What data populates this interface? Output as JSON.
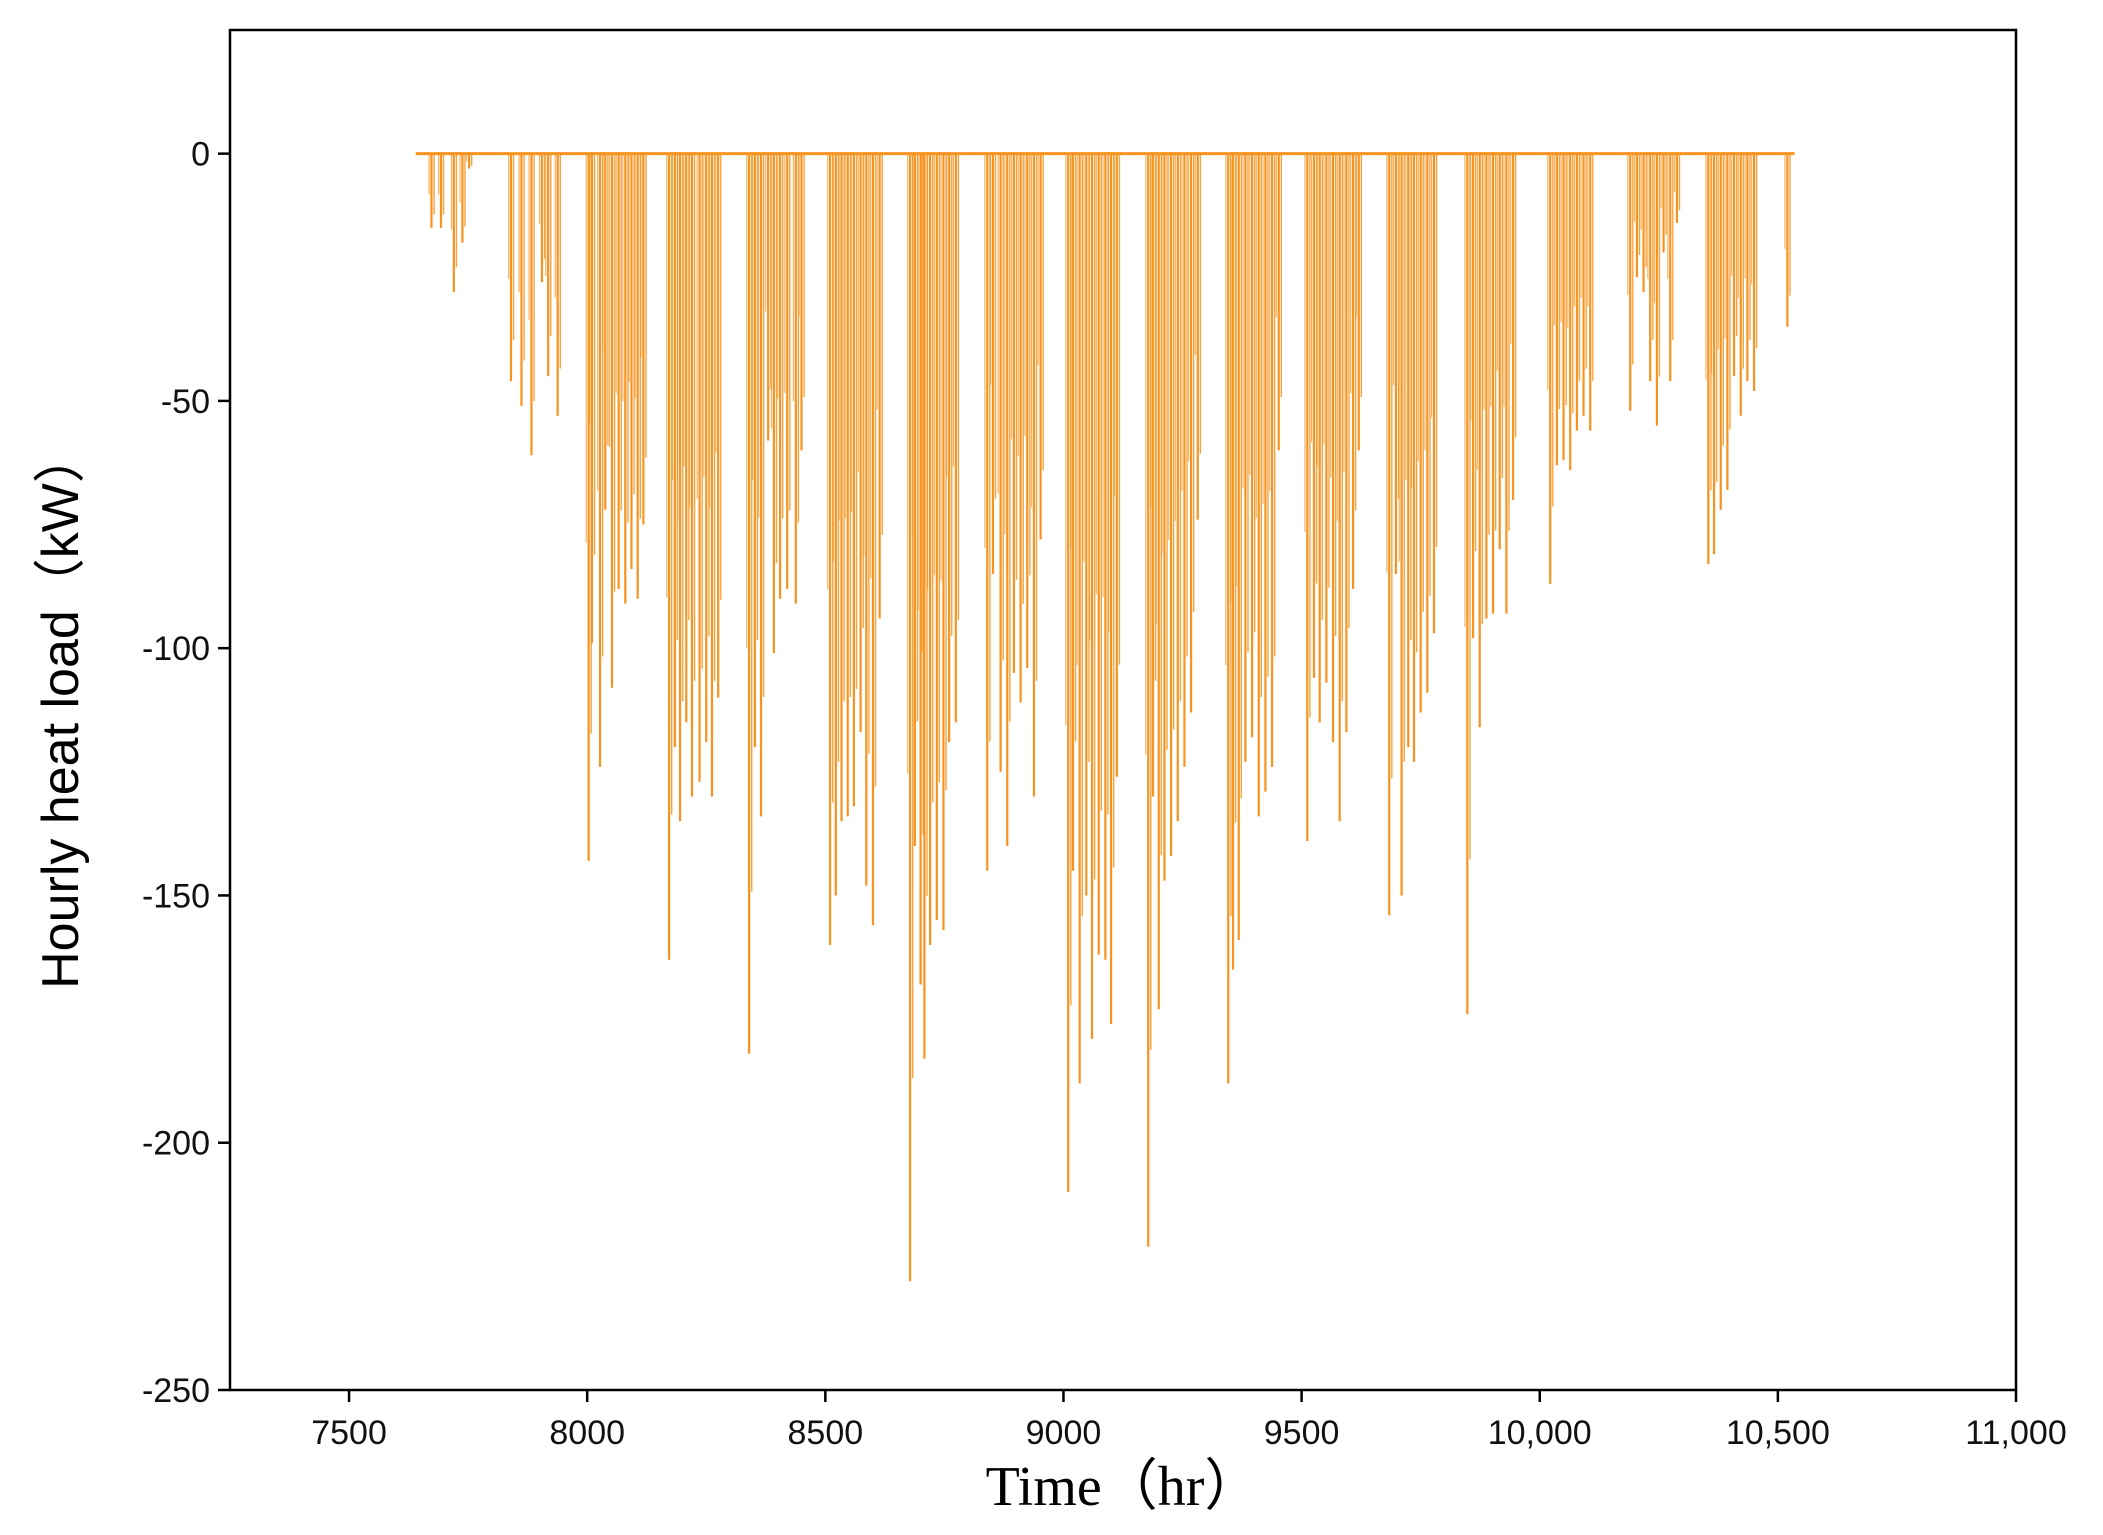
{
  "chart_data": {
    "type": "line",
    "title": "",
    "xlabel": "Time（hr）",
    "ylabel": "Hourly heat load（kW）",
    "xlim": [
      7250,
      11000
    ],
    "ylim": [
      -250,
      25
    ],
    "x_ticks": [
      7500,
      8000,
      8500,
      9000,
      9500,
      10000,
      10500,
      11000
    ],
    "x_tick_labels": [
      "7500",
      "8000",
      "8500",
      "9000",
      "9500",
      "10,000",
      "10,500",
      "11,000"
    ],
    "y_ticks": [
      0,
      -50,
      -100,
      -150,
      -200,
      -250
    ],
    "y_tick_labels": [
      "0",
      "-50",
      "-100",
      "-150",
      "-200",
      "-250"
    ],
    "grid": false,
    "legend": "none",
    "series_color": "#F7931E",
    "baseline": 0,
    "x_range": [
      7640,
      10535
    ],
    "spikes": [
      [
        7673,
        -15
      ],
      [
        7693,
        -15
      ],
      [
        7720,
        -28
      ],
      [
        7738,
        -18
      ],
      [
        7752,
        -3
      ],
      [
        7840,
        -46
      ],
      [
        7862,
        -51
      ],
      [
        7883,
        -61
      ],
      [
        7905,
        -26
      ],
      [
        7918,
        -45
      ],
      [
        7938,
        -53
      ],
      [
        8003,
        -143
      ],
      [
        8010,
        -99
      ],
      [
        8027,
        -124
      ],
      [
        8038,
        -72
      ],
      [
        8052,
        -108
      ],
      [
        8066,
        -88
      ],
      [
        8080,
        -91
      ],
      [
        8093,
        -84
      ],
      [
        8106,
        -90
      ],
      [
        8118,
        -75
      ],
      [
        8172,
        -163
      ],
      [
        8184,
        -120
      ],
      [
        8195,
        -135
      ],
      [
        8208,
        -115
      ],
      [
        8220,
        -130
      ],
      [
        8236,
        -127
      ],
      [
        8250,
        -119
      ],
      [
        8262,
        -130
      ],
      [
        8275,
        -110
      ],
      [
        8340,
        -182
      ],
      [
        8352,
        -120
      ],
      [
        8365,
        -134
      ],
      [
        8380,
        -58
      ],
      [
        8392,
        -101
      ],
      [
        8405,
        -90
      ],
      [
        8420,
        -88
      ],
      [
        8438,
        -91
      ],
      [
        8450,
        -60
      ],
      [
        8510,
        -160
      ],
      [
        8522,
        -150
      ],
      [
        8534,
        -135
      ],
      [
        8547,
        -134
      ],
      [
        8560,
        -132
      ],
      [
        8574,
        -117
      ],
      [
        8586,
        -148
      ],
      [
        8600,
        -156
      ],
      [
        8614,
        -94
      ],
      [
        8678,
        -228
      ],
      [
        8688,
        -140
      ],
      [
        8700,
        -168
      ],
      [
        8708,
        -183
      ],
      [
        8720,
        -160
      ],
      [
        8734,
        -155
      ],
      [
        8748,
        -157
      ],
      [
        8760,
        -119
      ],
      [
        8774,
        -115
      ],
      [
        8840,
        -145
      ],
      [
        8852,
        -85
      ],
      [
        8868,
        -125
      ],
      [
        8882,
        -140
      ],
      [
        8896,
        -105
      ],
      [
        8910,
        -111
      ],
      [
        8924,
        -104
      ],
      [
        8938,
        -130
      ],
      [
        8952,
        -78
      ],
      [
        9010,
        -210
      ],
      [
        9020,
        -145
      ],
      [
        9034,
        -188
      ],
      [
        9048,
        -150
      ],
      [
        9060,
        -179
      ],
      [
        9074,
        -162
      ],
      [
        9088,
        -163
      ],
      [
        9100,
        -176
      ],
      [
        9112,
        -126
      ],
      [
        9178,
        -221
      ],
      [
        9188,
        -130
      ],
      [
        9200,
        -173
      ],
      [
        9212,
        -147
      ],
      [
        9226,
        -142
      ],
      [
        9240,
        -135
      ],
      [
        9254,
        -124
      ],
      [
        9268,
        -113
      ],
      [
        9282,
        -74
      ],
      [
        9346,
        -188
      ],
      [
        9356,
        -165
      ],
      [
        9368,
        -159
      ],
      [
        9382,
        -123
      ],
      [
        9396,
        -118
      ],
      [
        9410,
        -134
      ],
      [
        9424,
        -129
      ],
      [
        9438,
        -124
      ],
      [
        9452,
        -60
      ],
      [
        9512,
        -139
      ],
      [
        9526,
        -106
      ],
      [
        9538,
        -115
      ],
      [
        9552,
        -107
      ],
      [
        9566,
        -119
      ],
      [
        9580,
        -135
      ],
      [
        9594,
        -117
      ],
      [
        9608,
        -88
      ],
      [
        9620,
        -60
      ],
      [
        9684,
        -154
      ],
      [
        9698,
        -85
      ],
      [
        9710,
        -150
      ],
      [
        9724,
        -120
      ],
      [
        9736,
        -123
      ],
      [
        9750,
        -113
      ],
      [
        9764,
        -109
      ],
      [
        9778,
        -97
      ],
      [
        9848,
        -174
      ],
      [
        9860,
        -98
      ],
      [
        9874,
        -116
      ],
      [
        9888,
        -94
      ],
      [
        9902,
        -93
      ],
      [
        9916,
        -80
      ],
      [
        9930,
        -93
      ],
      [
        9944,
        -70
      ],
      [
        10022,
        -87
      ],
      [
        10036,
        -63
      ],
      [
        10050,
        -62
      ],
      [
        10064,
        -64
      ],
      [
        10078,
        -56
      ],
      [
        10092,
        -53
      ],
      [
        10106,
        -56
      ],
      [
        10190,
        -52
      ],
      [
        10204,
        -25
      ],
      [
        10218,
        -28
      ],
      [
        10232,
        -46
      ],
      [
        10246,
        -55
      ],
      [
        10260,
        -20
      ],
      [
        10274,
        -46
      ],
      [
        10288,
        -14
      ],
      [
        10354,
        -83
      ],
      [
        10366,
        -81
      ],
      [
        10380,
        -72
      ],
      [
        10394,
        -68
      ],
      [
        10408,
        -45
      ],
      [
        10422,
        -53
      ],
      [
        10436,
        -46
      ],
      [
        10450,
        -48
      ],
      [
        10520,
        -35
      ]
    ]
  }
}
